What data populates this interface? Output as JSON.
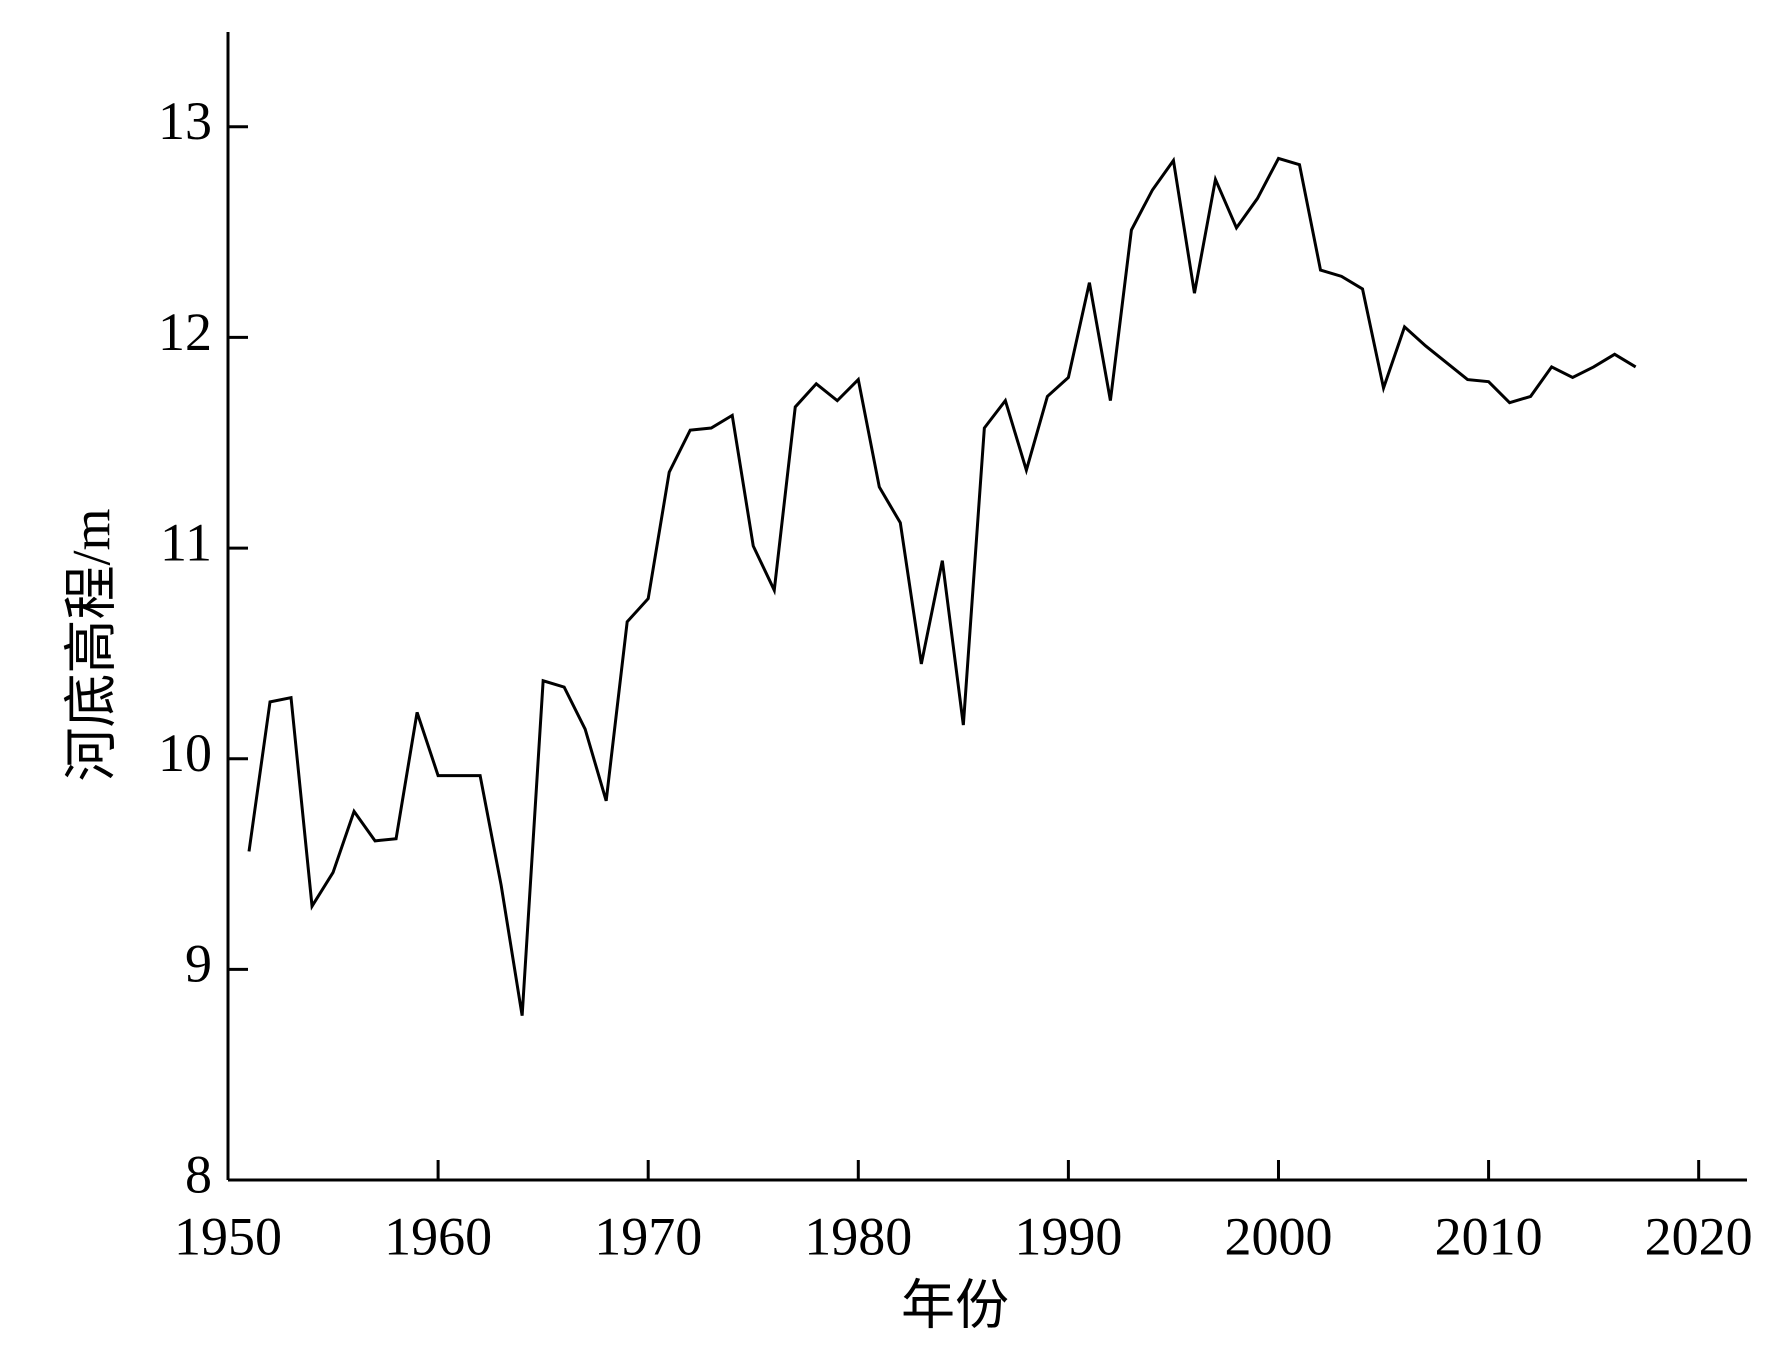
{
  "chart_data": {
    "type": "line",
    "xlabel": "年份",
    "ylabel": "河底高程/m",
    "x": [
      1951,
      1952,
      1953,
      1954,
      1955,
      1956,
      1957,
      1958,
      1959,
      1960,
      1961,
      1962,
      1963,
      1964,
      1965,
      1966,
      1967,
      1968,
      1969,
      1970,
      1971,
      1972,
      1973,
      1974,
      1975,
      1976,
      1977,
      1978,
      1979,
      1980,
      1981,
      1982,
      1983,
      1984,
      1985,
      1986,
      1987,
      1988,
      1989,
      1990,
      1991,
      1992,
      1993,
      1994,
      1995,
      1996,
      1997,
      1998,
      1999,
      2000,
      2001,
      2002,
      2003,
      2004,
      2005,
      2006,
      2007,
      2008,
      2009,
      2010,
      2011,
      2012,
      2013,
      2014,
      2015,
      2016,
      2017
    ],
    "series": [
      {
        "color": "#000000",
        "values": [
          9.56,
          10.27,
          10.29,
          9.3,
          9.46,
          9.75,
          9.61,
          9.62,
          10.22,
          9.92,
          9.92,
          9.92,
          9.4,
          8.78,
          10.37,
          10.34,
          10.14,
          9.8,
          10.65,
          10.76,
          11.36,
          11.56,
          11.57,
          11.63,
          11.01,
          10.8,
          11.67,
          11.78,
          11.7,
          11.8,
          11.29,
          11.12,
          10.45,
          10.94,
          10.16,
          11.57,
          11.7,
          11.37,
          11.72,
          11.81,
          12.26,
          11.7,
          12.51,
          12.7,
          12.84,
          12.21,
          12.75,
          12.52,
          12.66,
          12.85,
          12.82,
          12.32,
          12.29,
          12.23,
          11.76,
          12.05,
          11.96,
          11.88,
          11.8,
          11.79,
          11.69,
          11.72,
          11.86,
          11.81,
          11.86,
          11.92,
          11.86
        ]
      }
    ],
    "xlim": [
      1950,
      2022.3
    ],
    "ylim": [
      8,
      13.45
    ],
    "xticks": [
      1950,
      1960,
      1970,
      1980,
      1990,
      2000,
      2010,
      2020
    ],
    "yticks": [
      8,
      9,
      10,
      11,
      12,
      13
    ]
  }
}
